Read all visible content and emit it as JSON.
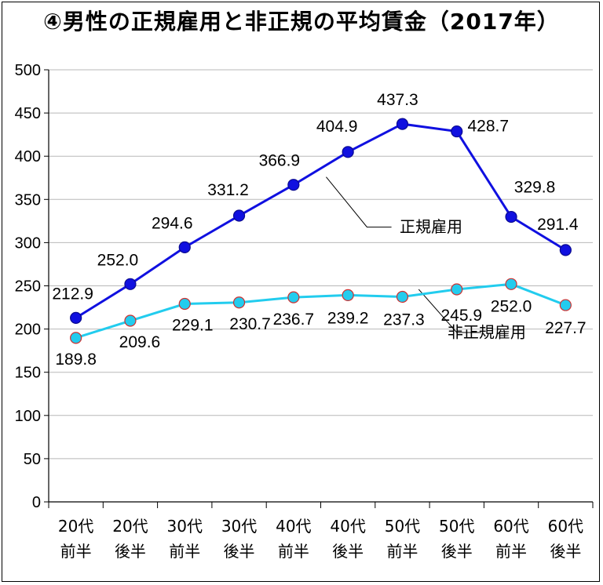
{
  "title": "④男性の正規雇用と非正規の平均賃金（2017年）",
  "chart_data": {
    "type": "line",
    "title": "④男性の正規雇用と非正規の平均賃金（2017年）",
    "xlabel": "",
    "ylabel": "",
    "ylim": [
      0,
      500
    ],
    "yticks": [
      0,
      50,
      100,
      150,
      200,
      250,
      300,
      350,
      400,
      450,
      500
    ],
    "grid": true,
    "categories": [
      [
        "20代",
        "前半"
      ],
      [
        "20代",
        "後半"
      ],
      [
        "30代",
        "前半"
      ],
      [
        "30代",
        "後半"
      ],
      [
        "40代",
        "前半"
      ],
      [
        "40代",
        "後半"
      ],
      [
        "50代",
        "前半"
      ],
      [
        "50代",
        "後半"
      ],
      [
        "60代",
        "前半"
      ],
      [
        "60代",
        "後半"
      ]
    ],
    "series": [
      {
        "name": "正規雇用",
        "color": "#1010e0",
        "values": [
          212.9,
          252.0,
          294.6,
          331.2,
          366.9,
          404.9,
          437.3,
          428.7,
          329.8,
          291.4
        ]
      },
      {
        "name": "非正規雇用",
        "color": "#22ccee",
        "values": [
          189.8,
          209.6,
          229.1,
          230.7,
          236.7,
          239.2,
          237.3,
          245.9,
          252.0,
          227.7
        ]
      }
    ],
    "data_labels": {
      "正規雇用": [
        "212.9",
        "252.0",
        "294.6",
        "331.2",
        "366.9",
        "404.9",
        "437.3",
        "428.7",
        "329.8",
        "291.4"
      ],
      "非正規雇用": [
        "189.8",
        "209.6",
        "229.1",
        "230.7",
        "236.7",
        "239.2",
        "237.3",
        "245.9",
        "252.0",
        "227.7"
      ]
    }
  }
}
